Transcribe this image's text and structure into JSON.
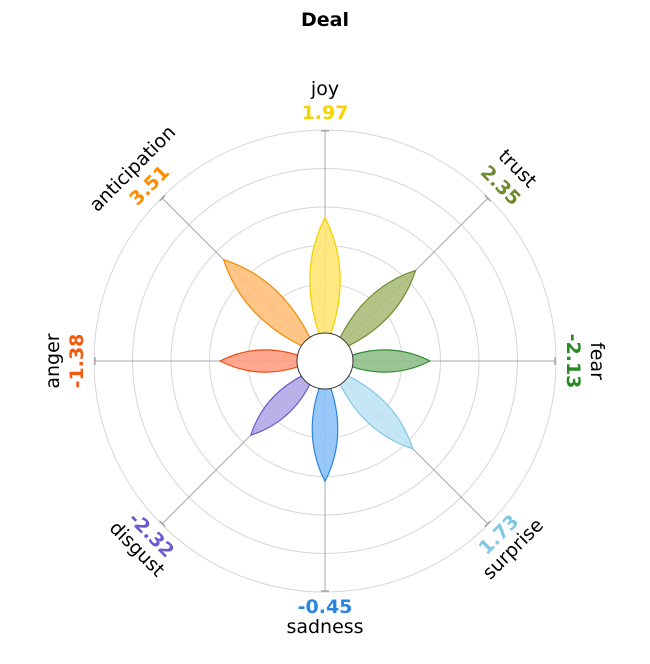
{
  "chart_data": {
    "type": "polar-petal",
    "title": "Deal",
    "categories": [
      "joy",
      "trust",
      "fear",
      "surprise",
      "sadness",
      "disgust",
      "anger",
      "anticipation"
    ],
    "values": [
      1.97,
      2.35,
      -2.13,
      1.73,
      -0.45,
      -2.32,
      -1.38,
      3.51
    ],
    "value_labels": [
      "1.97",
      "2.35",
      "-2.13",
      "1.73",
      "-0.45",
      "-2.32",
      "-1.38",
      "3.51"
    ],
    "petal_lengths": [
      3.0,
      2.6,
      2.0,
      2.5,
      2.4,
      2.0,
      2.0,
      3.0
    ],
    "rings": 5,
    "grid": true,
    "colors": {
      "joy": {
        "fill": "#ffe671",
        "stroke": "#f0d000",
        "text": "#f5d400"
      },
      "trust": {
        "fill": "#acbd7b",
        "stroke": "#6e8b2f",
        "text": "#6e8b2f"
      },
      "fear": {
        "fill": "#8fc08a",
        "stroke": "#2f8b2f",
        "text": "#268b22"
      },
      "surprise": {
        "fill": "#bfe3f3",
        "stroke": "#7ec8e3",
        "text": "#7ec8e3"
      },
      "sadness": {
        "fill": "#8cc2f8",
        "stroke": "#2b86d9",
        "text": "#2b86e0"
      },
      "disgust": {
        "fill": "#b1a8e6",
        "stroke": "#6a5acd",
        "text": "#6a5acd"
      },
      "anger": {
        "fill": "#ff9f81",
        "stroke": "#f04a10",
        "text": "#f45a10"
      },
      "anticipation": {
        "fill": "#ffc07b",
        "stroke": "#f08a00",
        "text": "#ff8c00"
      }
    }
  }
}
